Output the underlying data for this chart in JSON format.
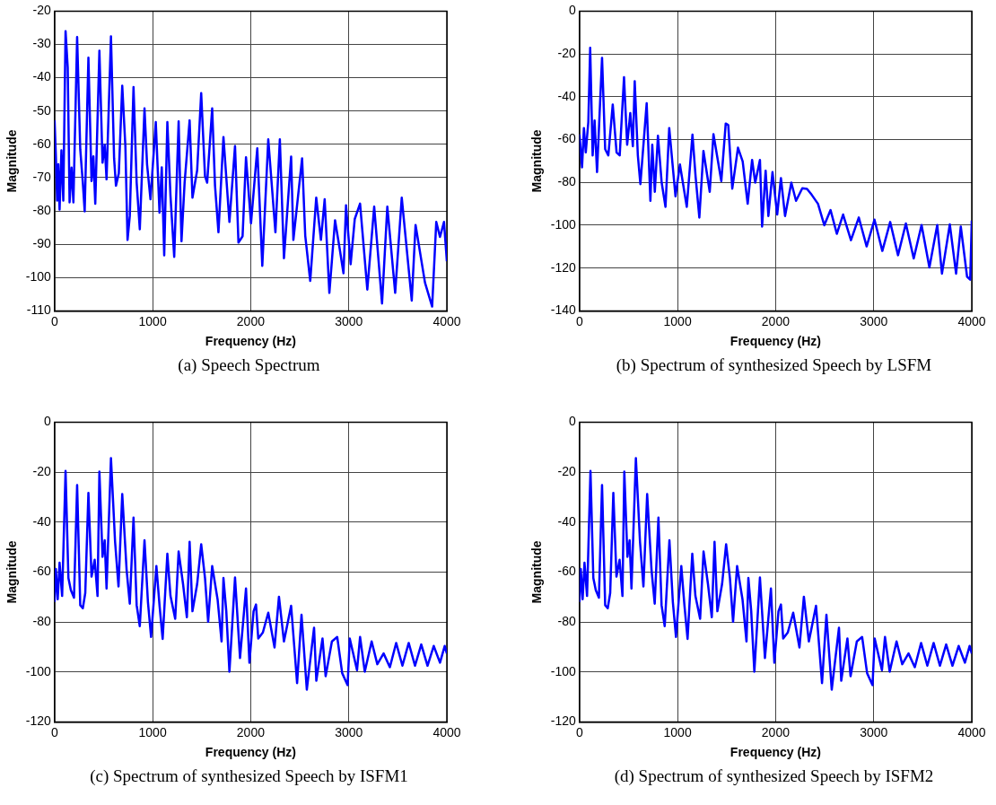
{
  "chart_data": [
    {
      "type": "line",
      "title": "(a)  Speech Spectrum",
      "xlabel": "Frequency (Hz)",
      "ylabel": "Magnitude",
      "color": "#0000ff",
      "grid": true,
      "xlim": [
        0,
        4000
      ],
      "xticks": [
        0,
        1000,
        2000,
        3000,
        4000
      ],
      "ylim": [
        -110,
        -20
      ],
      "yticks": [
        -110,
        -100,
        -90,
        -80,
        -70,
        -60,
        -50,
        -40,
        -30,
        -20
      ],
      "x": [
        0,
        13,
        26,
        38,
        51,
        70,
        89,
        112,
        134,
        153,
        173,
        192,
        230,
        262,
        288,
        307,
        345,
        377,
        396,
        415,
        457,
        489,
        511,
        530,
        575,
        607,
        626,
        655,
        690,
        722,
        744,
        767,
        805,
        837,
        869,
        917,
        943,
        978,
        1032,
        1070,
        1093,
        1118,
        1150,
        1182,
        1220,
        1265,
        1294,
        1326,
        1377,
        1406,
        1454,
        1495,
        1534,
        1556,
        1607,
        1636,
        1671,
        1722,
        1783,
        1840,
        1875,
        1917,
        1952,
        2003,
        2067,
        2118,
        2179,
        2252,
        2297,
        2339,
        2412,
        2435,
        2524,
        2556,
        2607,
        2668,
        2716,
        2754,
        2802,
        2860,
        2908,
        2946,
        2972,
        3019,
        3061,
        3115,
        3189,
        3259,
        3339,
        3393,
        3473,
        3540,
        3642,
        3681,
        3777,
        3850,
        3892,
        3930,
        3971,
        4000
      ],
      "values": [
        -52.8,
        -63.3,
        -76.9,
        -66,
        -79.6,
        -61.8,
        -76.9,
        -26,
        -36.9,
        -77.4,
        -67,
        -77.4,
        -27.8,
        -61.5,
        -71.5,
        -80.1,
        -34,
        -71,
        -63.6,
        -77.8,
        -31.9,
        -65.5,
        -60.1,
        -70.5,
        -27.6,
        -64.2,
        -72.4,
        -68.7,
        -42.4,
        -60.5,
        -88.7,
        -81.5,
        -42.8,
        -71.5,
        -85.5,
        -49.2,
        -66,
        -76.5,
        -53.3,
        -80.5,
        -66.9,
        -93.3,
        -53.3,
        -75.5,
        -93.8,
        -53.1,
        -89.1,
        -71.5,
        -52.8,
        -76,
        -67.8,
        -44.6,
        -69.6,
        -71.5,
        -49.2,
        -72.4,
        -86.4,
        -57.8,
        -83.3,
        -60.5,
        -89.5,
        -87.6,
        -63.9,
        -83.7,
        -61.2,
        -96.5,
        -58.5,
        -86.4,
        -58.5,
        -94.2,
        -63.7,
        -88.7,
        -64.2,
        -87.4,
        -101,
        -76,
        -88.7,
        -76.5,
        -104.6,
        -82.8,
        -91.5,
        -98.7,
        -78.3,
        -96,
        -82.4,
        -77.8,
        -103.6,
        -78.7,
        -107.8,
        -78.7,
        -104.6,
        -76,
        -106.9,
        -84.2,
        -101.5,
        -108.7,
        -83.3,
        -87.8,
        -83.3,
        -95.1
      ]
    },
    {
      "type": "line",
      "title": "(b)  Spectrum of synthesized Speech by LSFM",
      "xlabel": "Frequency (Hz)",
      "ylabel": "Magnitude",
      "color": "#0000ff",
      "grid": true,
      "xlim": [
        0,
        4000
      ],
      "xticks": [
        0,
        1000,
        2000,
        3000,
        4000
      ],
      "ylim": [
        -140,
        0
      ],
      "yticks": [
        -140,
        -120,
        -100,
        -80,
        -60,
        -40,
        -20,
        0
      ],
      "x": [
        0,
        26,
        45,
        64,
        90,
        109,
        134,
        154,
        179,
        230,
        262,
        294,
        339,
        378,
        410,
        454,
        486,
        518,
        544,
        563,
        595,
        621,
        685,
        723,
        742,
        768,
        800,
        838,
        877,
        915,
        979,
        1024,
        1094,
        1152,
        1184,
        1222,
        1264,
        1328,
        1366,
        1446,
        1491,
        1517,
        1558,
        1616,
        1664,
        1715,
        1760,
        1792,
        1840,
        1862,
        1898,
        1926,
        1968,
        2016,
        2054,
        2096,
        2160,
        2208,
        2272,
        2320,
        2368,
        2432,
        2496,
        2560,
        2624,
        2688,
        2768,
        2848,
        2928,
        3008,
        3088,
        3168,
        3248,
        3328,
        3408,
        3488,
        3568,
        3648,
        3696,
        3776,
        3840,
        3888,
        3952,
        3984,
        4000
      ],
      "values": [
        -57.5,
        -73,
        -54.6,
        -66,
        -51.8,
        -17.1,
        -67.4,
        -51.1,
        -75.2,
        -21.8,
        -64.5,
        -67.4,
        -43.6,
        -66,
        -67.4,
        -30.9,
        -62.4,
        -47.6,
        -63.1,
        -32.7,
        -67.4,
        -80.8,
        -43,
        -88.6,
        -62.4,
        -84.4,
        -58.2,
        -80.1,
        -91.4,
        -54.6,
        -86.5,
        -71.6,
        -91.4,
        -57.7,
        -77.3,
        -96.4,
        -65.3,
        -84.4,
        -57.5,
        -79.4,
        -52.5,
        -53.2,
        -82.9,
        -63.8,
        -70.2,
        -90,
        -69.5,
        -80.1,
        -69.5,
        -100.6,
        -74.5,
        -95.7,
        -75.2,
        -95,
        -78,
        -95.7,
        -80.1,
        -88.6,
        -82.7,
        -83,
        -85.8,
        -90,
        -100,
        -92.9,
        -104,
        -95,
        -107,
        -96.4,
        -109.9,
        -97.4,
        -112,
        -98.5,
        -114,
        -99.2,
        -115.5,
        -99.9,
        -119.7,
        -99.9,
        -122.6,
        -99.6,
        -122.6,
        -100.6,
        -124,
        -125.4,
        -97.8
      ]
    },
    {
      "type": "line",
      "title": "(c)  Spectrum of synthesized Speech by ISFM1",
      "xlabel": "Frequency (Hz)",
      "ylabel": "Magnitude",
      "color": "#0000ff",
      "grid": true,
      "xlim": [
        0,
        4000
      ],
      "xticks": [
        0,
        1000,
        2000,
        3000,
        4000
      ],
      "ylim": [
        -120,
        0
      ],
      "yticks": [
        -120,
        -100,
        -80,
        -60,
        -40,
        -20,
        0
      ],
      "x": [
        0,
        13,
        32,
        51,
        77,
        89,
        112,
        141,
        166,
        198,
        230,
        262,
        288,
        313,
        345,
        377,
        409,
        438,
        457,
        489,
        511,
        530,
        575,
        617,
        652,
        690,
        735,
        767,
        805,
        837,
        869,
        917,
        952,
        984,
        1038,
        1070,
        1102,
        1150,
        1182,
        1230,
        1265,
        1310,
        1349,
        1377,
        1406,
        1454,
        1495,
        1534,
        1566,
        1607,
        1662,
        1703,
        1722,
        1751,
        1783,
        1840,
        1891,
        1952,
        1987,
        2029,
        2054,
        2077,
        2124,
        2179,
        2243,
        2288,
        2339,
        2412,
        2473,
        2518,
        2572,
        2646,
        2669,
        2732,
        2764,
        2828,
        2882,
        2933,
        2988,
        3010,
        3084,
        3115,
        3163,
        3233,
        3291,
        3355,
        3419,
        3483,
        3547,
        3611,
        3675,
        3739,
        3803,
        3866,
        3930,
        3978,
        4000
      ],
      "values": [
        -72,
        -58.8,
        -70.9,
        -56.3,
        -69.6,
        -52.7,
        -19.5,
        -62.4,
        -67.2,
        -70.3,
        -25.2,
        -73.3,
        -74.5,
        -68.4,
        -28.3,
        -61.8,
        -55.1,
        -69.6,
        -19.8,
        -53.9,
        -47.3,
        -66.6,
        -14.4,
        -47.9,
        -65.8,
        -28.8,
        -59.4,
        -72.7,
        -38.2,
        -73.3,
        -81.7,
        -47.3,
        -72,
        -86,
        -57.6,
        -73.3,
        -86.8,
        -52.7,
        -69.6,
        -78.7,
        -51.8,
        -64.8,
        -78.1,
        -47.9,
        -75.7,
        -64.8,
        -48.9,
        -62.4,
        -79.9,
        -57.6,
        -70.9,
        -87.8,
        -62.4,
        -75.7,
        -99.9,
        -62.2,
        -94.4,
        -66.6,
        -96.3,
        -75.7,
        -73,
        -86.6,
        -84.2,
        -76.3,
        -90.2,
        -69.9,
        -87.8,
        -73.5,
        -104.5,
        -77.1,
        -107.1,
        -82.3,
        -103.5,
        -86.6,
        -101.7,
        -87.8,
        -86,
        -100.5,
        -105.3,
        -86.6,
        -99.3,
        -86,
        -99.9,
        -87.8,
        -96.9,
        -92.6,
        -98.1,
        -88.4,
        -97.5,
        -88.4,
        -97.5,
        -89,
        -97.5,
        -89.6,
        -96.3,
        -89.6,
        -92.6
      ]
    },
    {
      "type": "line",
      "title": "(d)  Spectrum of synthesized Speech by ISFM2",
      "xlabel": "Frequency (Hz)",
      "ylabel": "Magnitude",
      "color": "#0000ff",
      "grid": true,
      "xlim": [
        0,
        4000
      ],
      "xticks": [
        0,
        1000,
        2000,
        3000,
        4000
      ],
      "ylim": [
        -120,
        0
      ],
      "yticks": [
        -120,
        -100,
        -80,
        -60,
        -40,
        -20,
        0
      ],
      "x": [
        0,
        13,
        32,
        51,
        77,
        89,
        112,
        141,
        166,
        198,
        230,
        262,
        288,
        313,
        345,
        377,
        409,
        438,
        457,
        489,
        511,
        530,
        575,
        617,
        652,
        690,
        735,
        767,
        805,
        837,
        869,
        917,
        952,
        984,
        1038,
        1070,
        1102,
        1150,
        1182,
        1230,
        1265,
        1310,
        1349,
        1377,
        1406,
        1454,
        1495,
        1534,
        1566,
        1607,
        1662,
        1703,
        1722,
        1751,
        1783,
        1840,
        1891,
        1952,
        1987,
        2029,
        2054,
        2077,
        2124,
        2179,
        2243,
        2288,
        2339,
        2412,
        2473,
        2518,
        2572,
        2646,
        2669,
        2732,
        2764,
        2828,
        2882,
        2933,
        2988,
        3010,
        3084,
        3115,
        3163,
        3233,
        3291,
        3355,
        3419,
        3483,
        3547,
        3611,
        3675,
        3739,
        3803,
        3866,
        3930,
        3978,
        4000
      ],
      "values": [
        -72,
        -58.8,
        -70.9,
        -56.3,
        -69.6,
        -52.7,
        -19.5,
        -62.4,
        -67.2,
        -70.3,
        -25.2,
        -73.3,
        -74.5,
        -68.4,
        -28.3,
        -61.8,
        -55.1,
        -69.6,
        -19.8,
        -53.9,
        -47.3,
        -66.6,
        -14.4,
        -47.9,
        -65.8,
        -28.8,
        -59.4,
        -72.7,
        -38.2,
        -73.3,
        -81.7,
        -47.3,
        -72,
        -86,
        -57.6,
        -73.3,
        -86.8,
        -52.7,
        -69.6,
        -78.7,
        -51.8,
        -64.8,
        -78.1,
        -47.9,
        -75.7,
        -64.8,
        -48.9,
        -62.4,
        -79.9,
        -57.6,
        -70.9,
        -87.8,
        -62.4,
        -75.7,
        -99.9,
        -62.2,
        -94.4,
        -66.6,
        -96.3,
        -75.7,
        -73,
        -86.6,
        -84.2,
        -76.3,
        -90.2,
        -69.9,
        -87.8,
        -73.5,
        -104.5,
        -77.1,
        -107.1,
        -82.3,
        -103.5,
        -86.6,
        -101.7,
        -87.8,
        -86,
        -100.5,
        -105.3,
        -86.6,
        -99.3,
        -86,
        -99.9,
        -87.8,
        -96.9,
        -92.6,
        -98.1,
        -88.4,
        -97.5,
        -88.4,
        -97.5,
        -89,
        -97.5,
        -89.6,
        -96.3,
        -89.6,
        -92.6
      ]
    }
  ]
}
